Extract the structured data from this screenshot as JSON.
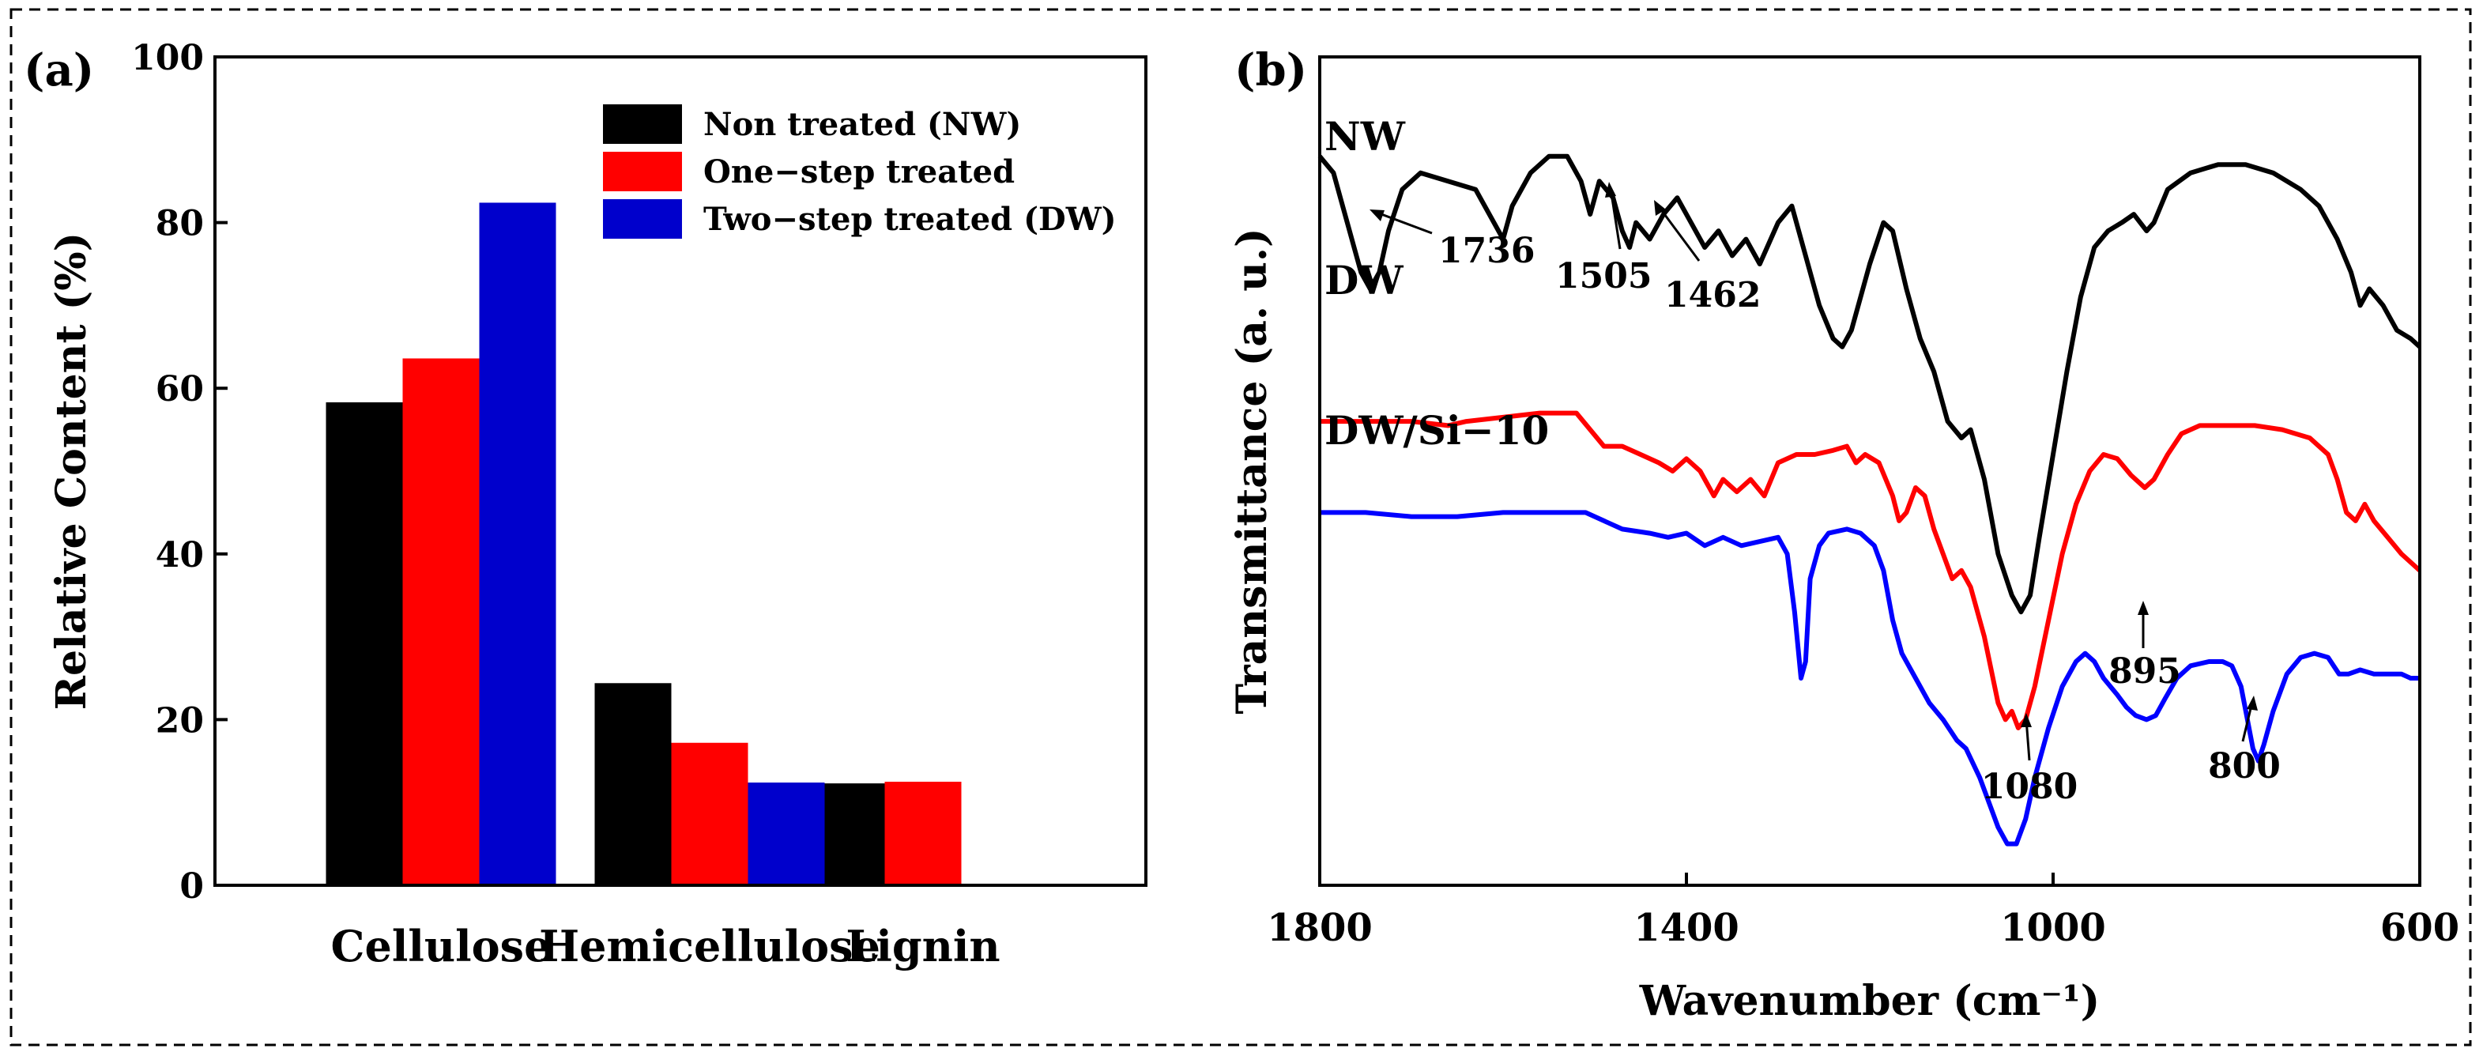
{
  "chart_data": [
    {
      "panel_label": "(a)",
      "type": "bar",
      "categories": [
        "Cellulose",
        "Hemicellulose",
        "Lignin"
      ],
      "ylabel": "Relative Content (%)",
      "ylim": [
        0,
        100
      ],
      "yticks": [
        0,
        20,
        40,
        60,
        80,
        100
      ],
      "grid": false,
      "legend_position": "top-right",
      "series": [
        {
          "name": "Non treated (NW)",
          "color": "#000000",
          "values": [
            58.3,
            24.4,
            12.3
          ]
        },
        {
          "name": "One−step treated",
          "color": "#ff0000",
          "values": [
            63.6,
            17.2,
            12.5
          ]
        },
        {
          "name": "Two−step treated (DW)",
          "color": "#0000cc",
          "values": [
            82.4,
            12.4,
            0
          ]
        }
      ]
    },
    {
      "panel_label": "(b)",
      "type": "line",
      "xlabel": "Wavenumber (cm⁻¹)",
      "ylabel": "Transmittance (a. u.)",
      "xlim": [
        1800,
        600
      ],
      "xticks": [
        1800,
        1400,
        1000,
        600
      ],
      "x_reversed": true,
      "y_axis_scale": "arbitrary units",
      "grid": false,
      "series": [
        {
          "name": "NW",
          "color": "#000000",
          "points": [
            [
              1800,
              0.88
            ],
            [
              1785,
              0.86
            ],
            [
              1770,
              0.8
            ],
            [
              1755,
              0.74
            ],
            [
              1745,
              0.72
            ],
            [
              1735,
              0.74
            ],
            [
              1725,
              0.79
            ],
            [
              1710,
              0.84
            ],
            [
              1690,
              0.86
            ],
            [
              1660,
              0.85
            ],
            [
              1630,
              0.84
            ],
            [
              1610,
              0.8
            ],
            [
              1600,
              0.78
            ],
            [
              1590,
              0.82
            ],
            [
              1570,
              0.86
            ],
            [
              1550,
              0.88
            ],
            [
              1530,
              0.88
            ],
            [
              1515,
              0.85
            ],
            [
              1505,
              0.81
            ],
            [
              1495,
              0.85
            ],
            [
              1480,
              0.83
            ],
            [
              1470,
              0.79
            ],
            [
              1462,
              0.77
            ],
            [
              1455,
              0.8
            ],
            [
              1440,
              0.78
            ],
            [
              1425,
              0.81
            ],
            [
              1410,
              0.83
            ],
            [
              1395,
              0.8
            ],
            [
              1380,
              0.77
            ],
            [
              1365,
              0.79
            ],
            [
              1350,
              0.76
            ],
            [
              1335,
              0.78
            ],
            [
              1320,
              0.75
            ],
            [
              1300,
              0.8
            ],
            [
              1285,
              0.82
            ],
            [
              1270,
              0.76
            ],
            [
              1255,
              0.7
            ],
            [
              1240,
              0.66
            ],
            [
              1230,
              0.65
            ],
            [
              1220,
              0.67
            ],
            [
              1200,
              0.75
            ],
            [
              1185,
              0.8
            ],
            [
              1175,
              0.79
            ],
            [
              1160,
              0.72
            ],
            [
              1145,
              0.66
            ],
            [
              1130,
              0.62
            ],
            [
              1115,
              0.56
            ],
            [
              1100,
              0.54
            ],
            [
              1090,
              0.55
            ],
            [
              1075,
              0.49
            ],
            [
              1060,
              0.4
            ],
            [
              1045,
              0.35
            ],
            [
              1035,
              0.33
            ],
            [
              1025,
              0.35
            ],
            [
              1015,
              0.42
            ],
            [
              1000,
              0.52
            ],
            [
              985,
              0.62
            ],
            [
              970,
              0.71
            ],
            [
              955,
              0.77
            ],
            [
              940,
              0.79
            ],
            [
              925,
              0.8
            ],
            [
              912,
              0.81
            ],
            [
              898,
              0.79
            ],
            [
              890,
              0.8
            ],
            [
              875,
              0.84
            ],
            [
              850,
              0.86
            ],
            [
              820,
              0.87
            ],
            [
              790,
              0.87
            ],
            [
              760,
              0.86
            ],
            [
              730,
              0.84
            ],
            [
              710,
              0.82
            ],
            [
              690,
              0.78
            ],
            [
              675,
              0.74
            ],
            [
              665,
              0.7
            ],
            [
              655,
              0.72
            ],
            [
              640,
              0.7
            ],
            [
              625,
              0.67
            ],
            [
              610,
              0.66
            ],
            [
              600,
              0.65
            ]
          ]
        },
        {
          "name": "DW",
          "color": "#ff0000",
          "points": [
            [
              1800,
              0.56
            ],
            [
              1750,
              0.56
            ],
            [
              1700,
              0.56
            ],
            [
              1660,
              0.555
            ],
            [
              1640,
              0.56
            ],
            [
              1600,
              0.565
            ],
            [
              1560,
              0.57
            ],
            [
              1520,
              0.57
            ],
            [
              1505,
              0.55
            ],
            [
              1490,
              0.53
            ],
            [
              1470,
              0.53
            ],
            [
              1450,
              0.52
            ],
            [
              1430,
              0.51
            ],
            [
              1415,
              0.5
            ],
            [
              1400,
              0.515
            ],
            [
              1385,
              0.5
            ],
            [
              1370,
              0.47
            ],
            [
              1360,
              0.49
            ],
            [
              1345,
              0.475
            ],
            [
              1330,
              0.49
            ],
            [
              1315,
              0.47
            ],
            [
              1300,
              0.51
            ],
            [
              1280,
              0.52
            ],
            [
              1260,
              0.52
            ],
            [
              1240,
              0.525
            ],
            [
              1225,
              0.53
            ],
            [
              1215,
              0.51
            ],
            [
              1205,
              0.52
            ],
            [
              1190,
              0.51
            ],
            [
              1175,
              0.47
            ],
            [
              1168,
              0.44
            ],
            [
              1160,
              0.45
            ],
            [
              1150,
              0.48
            ],
            [
              1140,
              0.47
            ],
            [
              1130,
              0.43
            ],
            [
              1120,
              0.4
            ],
            [
              1110,
              0.37
            ],
            [
              1100,
              0.38
            ],
            [
              1090,
              0.36
            ],
            [
              1075,
              0.3
            ],
            [
              1060,
              0.22
            ],
            [
              1052,
              0.2
            ],
            [
              1045,
              0.21
            ],
            [
              1038,
              0.19
            ],
            [
              1030,
              0.2
            ],
            [
              1020,
              0.24
            ],
            [
              1005,
              0.32
            ],
            [
              990,
              0.4
            ],
            [
              975,
              0.46
            ],
            [
              960,
              0.5
            ],
            [
              945,
              0.52
            ],
            [
              930,
              0.515
            ],
            [
              915,
              0.495
            ],
            [
              900,
              0.48
            ],
            [
              890,
              0.49
            ],
            [
              875,
              0.52
            ],
            [
              860,
              0.545
            ],
            [
              840,
              0.555
            ],
            [
              810,
              0.555
            ],
            [
              780,
              0.555
            ],
            [
              750,
              0.55
            ],
            [
              720,
              0.54
            ],
            [
              700,
              0.52
            ],
            [
              690,
              0.49
            ],
            [
              680,
              0.45
            ],
            [
              670,
              0.44
            ],
            [
              660,
              0.46
            ],
            [
              650,
              0.44
            ],
            [
              635,
              0.42
            ],
            [
              620,
              0.4
            ],
            [
              610,
              0.39
            ],
            [
              600,
              0.38
            ]
          ]
        },
        {
          "name": "DW/Si−10",
          "color": "#0000ff",
          "points": [
            [
              1800,
              0.45
            ],
            [
              1750,
              0.45
            ],
            [
              1700,
              0.445
            ],
            [
              1650,
              0.445
            ],
            [
              1600,
              0.45
            ],
            [
              1550,
              0.45
            ],
            [
              1510,
              0.45
            ],
            [
              1490,
              0.44
            ],
            [
              1470,
              0.43
            ],
            [
              1440,
              0.425
            ],
            [
              1420,
              0.42
            ],
            [
              1400,
              0.425
            ],
            [
              1380,
              0.41
            ],
            [
              1360,
              0.42
            ],
            [
              1340,
              0.41
            ],
            [
              1320,
              0.415
            ],
            [
              1300,
              0.42
            ],
            [
              1290,
              0.4
            ],
            [
              1282,
              0.33
            ],
            [
              1275,
              0.25
            ],
            [
              1270,
              0.27
            ],
            [
              1265,
              0.37
            ],
            [
              1255,
              0.41
            ],
            [
              1245,
              0.425
            ],
            [
              1225,
              0.43
            ],
            [
              1210,
              0.425
            ],
            [
              1195,
              0.41
            ],
            [
              1185,
              0.38
            ],
            [
              1175,
              0.32
            ],
            [
              1165,
              0.28
            ],
            [
              1150,
              0.25
            ],
            [
              1135,
              0.22
            ],
            [
              1120,
              0.2
            ],
            [
              1105,
              0.175
            ],
            [
              1095,
              0.165
            ],
            [
              1080,
              0.13
            ],
            [
              1070,
              0.1
            ],
            [
              1060,
              0.07
            ],
            [
              1050,
              0.05
            ],
            [
              1040,
              0.05
            ],
            [
              1030,
              0.08
            ],
            [
              1020,
              0.13
            ],
            [
              1005,
              0.19
            ],
            [
              990,
              0.24
            ],
            [
              975,
              0.27
            ],
            [
              965,
              0.28
            ],
            [
              955,
              0.27
            ],
            [
              945,
              0.25
            ],
            [
              930,
              0.23
            ],
            [
              920,
              0.215
            ],
            [
              910,
              0.205
            ],
            [
              898,
              0.2
            ],
            [
              888,
              0.205
            ],
            [
              878,
              0.225
            ],
            [
              865,
              0.25
            ],
            [
              850,
              0.265
            ],
            [
              830,
              0.27
            ],
            [
              815,
              0.27
            ],
            [
              805,
              0.265
            ],
            [
              795,
              0.24
            ],
            [
              788,
              0.2
            ],
            [
              782,
              0.165
            ],
            [
              776,
              0.15
            ],
            [
              770,
              0.17
            ],
            [
              760,
              0.21
            ],
            [
              745,
              0.255
            ],
            [
              730,
              0.275
            ],
            [
              715,
              0.28
            ],
            [
              700,
              0.275
            ],
            [
              688,
              0.255
            ],
            [
              678,
              0.255
            ],
            [
              665,
              0.26
            ],
            [
              650,
              0.255
            ],
            [
              635,
              0.255
            ],
            [
              620,
              0.255
            ],
            [
              610,
              0.25
            ],
            [
              600,
              0.25
            ]
          ]
        }
      ],
      "series_labels": [
        "NW",
        "DW",
        "DW/Si−10"
      ],
      "annotations": [
        "1736",
        "1505",
        "1462",
        "1080",
        "895",
        "800"
      ]
    }
  ]
}
